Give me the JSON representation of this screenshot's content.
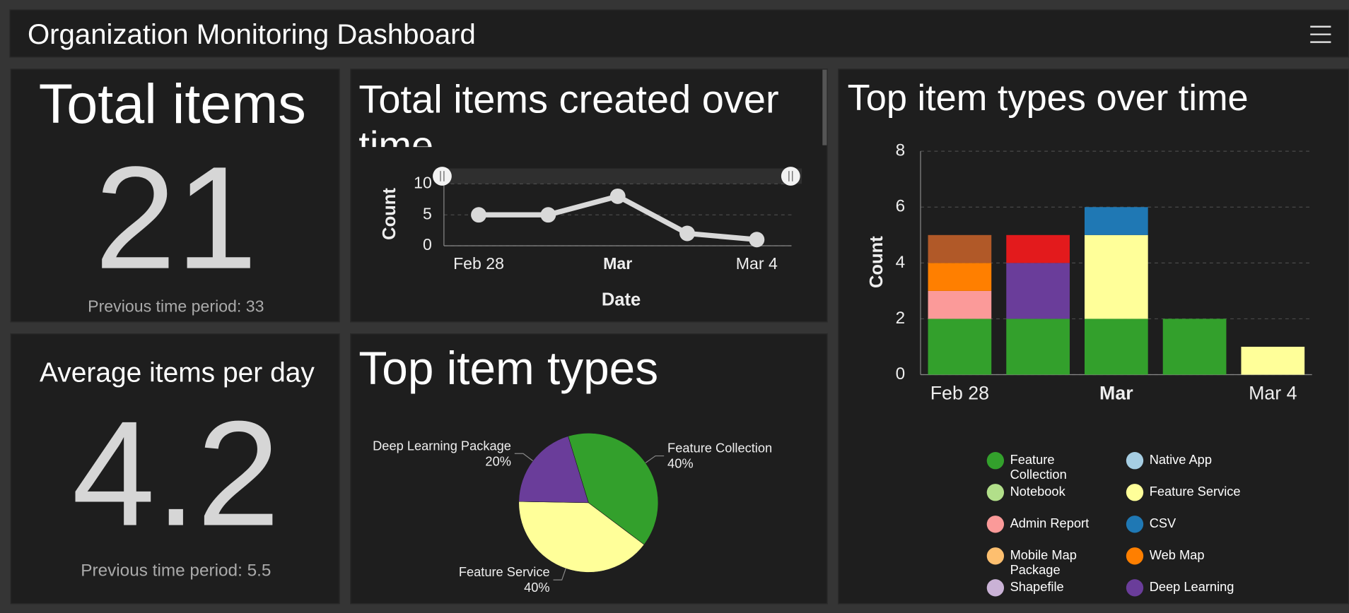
{
  "header": {
    "title": "Organization Monitoring Dashboard"
  },
  "indicators": [
    {
      "title": "Total items",
      "value": 21,
      "reference": "Previous time period: 33"
    },
    {
      "title": "Average items per day",
      "value": 4.2,
      "reference": "Previous time period: 5.5"
    }
  ],
  "chart_data": [
    {
      "type": "line",
      "title": "Total items created over time",
      "categories": [
        "Feb 28",
        null,
        "Mar",
        null,
        "Mar 4"
      ],
      "values": [
        5,
        5,
        8,
        2,
        1
      ],
      "color": "#d9d9d9",
      "xlabel": "Date",
      "ylabel": "Count",
      "ylim": [
        0,
        12.5
      ],
      "yticks": [
        0,
        5,
        10
      ],
      "grid": true
    },
    {
      "type": "pie",
      "title": "Top item types",
      "categories": [
        "Feature Collection",
        "Feature Service",
        "Deep Learning Package"
      ],
      "values": [
        40,
        40,
        20
      ],
      "value_labels": [
        "40%",
        "40%",
        "20%"
      ],
      "colors": [
        "#33a02c",
        "#ffff99",
        "#6a3d9a"
      ]
    },
    {
      "type": "bar",
      "stacked": true,
      "title": "Top item types over time",
      "categories": [
        "Feb 28",
        null,
        "Mar",
        null,
        "Mar 4"
      ],
      "ylabel": "Count",
      "ylim": [
        0,
        8
      ],
      "yticks": [
        0,
        2,
        4,
        6,
        8
      ],
      "grid": true,
      "series": [
        {
          "name": "Feature Collection",
          "color": "#33a02c",
          "values": [
            2,
            2,
            2,
            2,
            0
          ]
        },
        {
          "name": "Native App",
          "color": "#a6cee3",
          "values": [
            0,
            0,
            0,
            0,
            0
          ]
        },
        {
          "name": "Notebook",
          "color": "#b2df8a",
          "values": [
            0,
            0,
            0,
            0,
            0
          ]
        },
        {
          "name": "Feature Service",
          "color": "#ffff99",
          "values": [
            0,
            0,
            3,
            0,
            1
          ]
        },
        {
          "name": "Admin Report",
          "color": "#fb9a99",
          "values": [
            1,
            0,
            0,
            0,
            0
          ]
        },
        {
          "name": "CSV",
          "color": "#1f78b4",
          "values": [
            0,
            0,
            1,
            0,
            0
          ]
        },
        {
          "name": "Mobile Map Package",
          "color": "#fdbf6f",
          "values": [
            0,
            0,
            0,
            0,
            0
          ]
        },
        {
          "name": "Web Map",
          "color": "#ff7f00",
          "values": [
            1,
            0,
            0,
            0,
            0
          ]
        },
        {
          "name": "Shapefile",
          "color": "#cab2d6",
          "values": [
            0,
            0,
            0,
            0,
            0
          ]
        },
        {
          "name": "Deep Learning",
          "color": "#6a3d9a",
          "values": [
            0,
            2,
            0,
            0,
            0
          ]
        },
        {
          "color": "#e31a1c",
          "values": [
            0,
            1,
            0,
            0,
            0
          ]
        },
        {
          "color": "#b15928",
          "values": [
            1,
            0,
            0,
            0,
            0
          ]
        }
      ]
    }
  ]
}
